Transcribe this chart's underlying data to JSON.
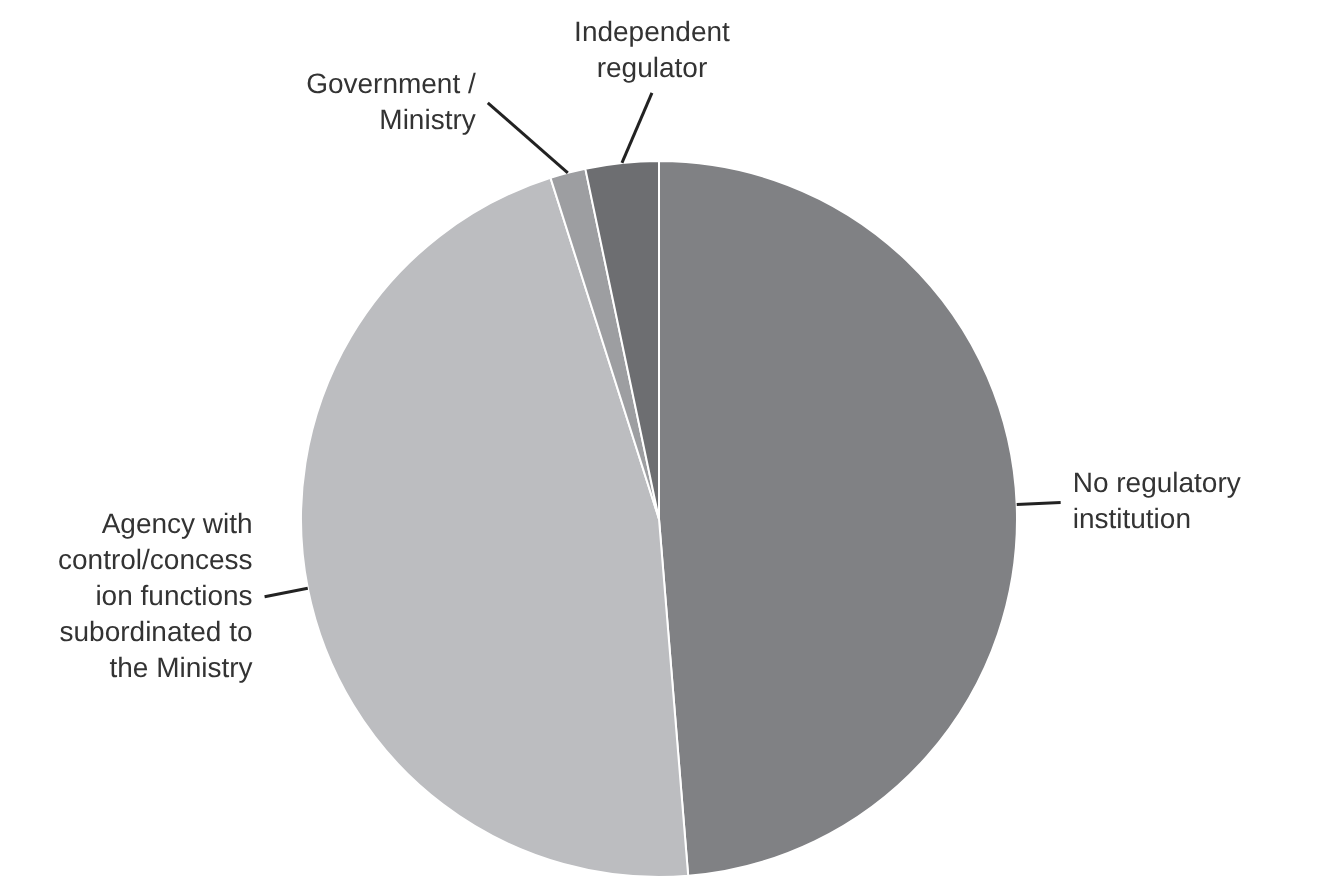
{
  "chart_data": {
    "type": "pie",
    "categories": [
      "No regulatory institution",
      "Agency with control/concession functions subordinated to the Ministry",
      "Government / Ministry",
      "Independent regulator"
    ],
    "values": [
      48.7,
      46.4,
      1.6,
      3.3
    ],
    "colors": [
      "#808184",
      "#bcbdc0",
      "#9d9ea1",
      "#6d6e71"
    ],
    "legend": false
  }
}
